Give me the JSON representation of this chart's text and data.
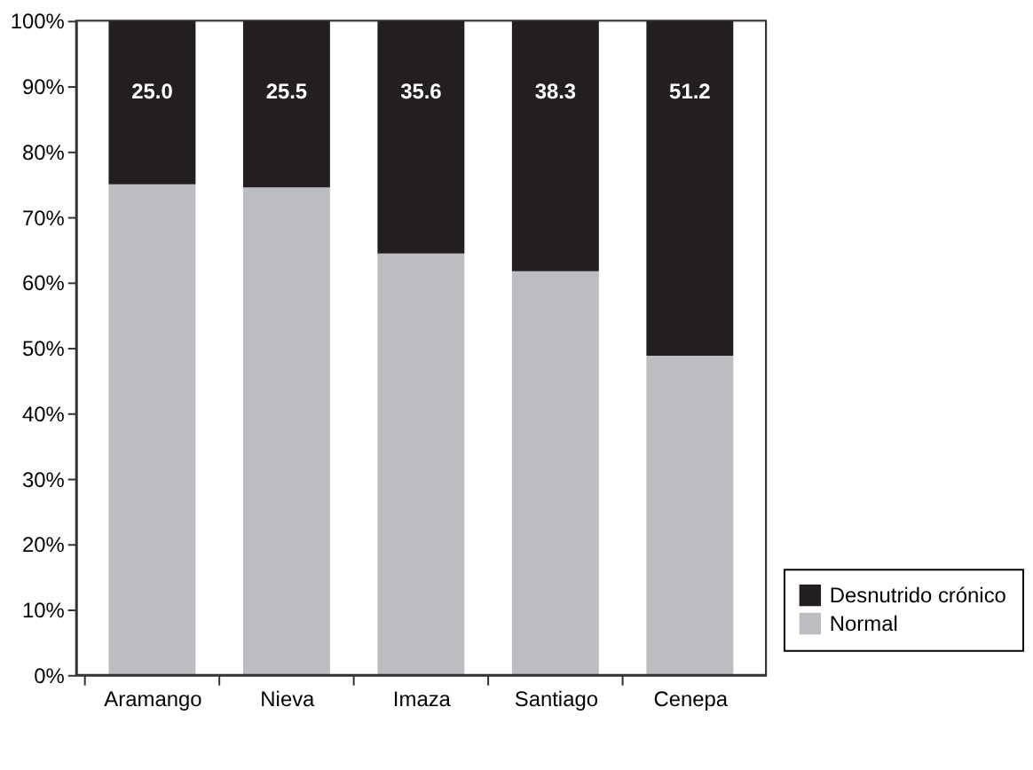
{
  "chart_data": {
    "type": "bar",
    "stacked": true,
    "categories": [
      "Aramango",
      "Nieva",
      "Imaza",
      "Santiago",
      "Cenepa"
    ],
    "series": [
      {
        "name": "Normal",
        "color": "#bcbdc1",
        "values": [
          75.0,
          74.5,
          64.4,
          61.7,
          48.8
        ]
      },
      {
        "name": "Desnutrido crónico",
        "color": "#231f20",
        "values": [
          25.0,
          25.5,
          35.6,
          38.3,
          51.2
        ],
        "value_labels": [
          "25.0",
          "25.5",
          "35.6",
          "38.3",
          "51.2"
        ]
      }
    ],
    "ylim": [
      0,
      100
    ],
    "yticks": [
      {
        "value": 0,
        "label": "0%"
      },
      {
        "value": 10,
        "label": "10%"
      },
      {
        "value": 20,
        "label": "20%"
      },
      {
        "value": 30,
        "label": "30%"
      },
      {
        "value": 40,
        "label": "40%"
      },
      {
        "value": 50,
        "label": "50%"
      },
      {
        "value": 60,
        "label": "60%"
      },
      {
        "value": 70,
        "label": "70%"
      },
      {
        "value": 80,
        "label": "80%"
      },
      {
        "value": 90,
        "label": "90%"
      },
      {
        "value": 100,
        "label": "100%"
      }
    ],
    "grid": false,
    "legend": "bottom right"
  }
}
